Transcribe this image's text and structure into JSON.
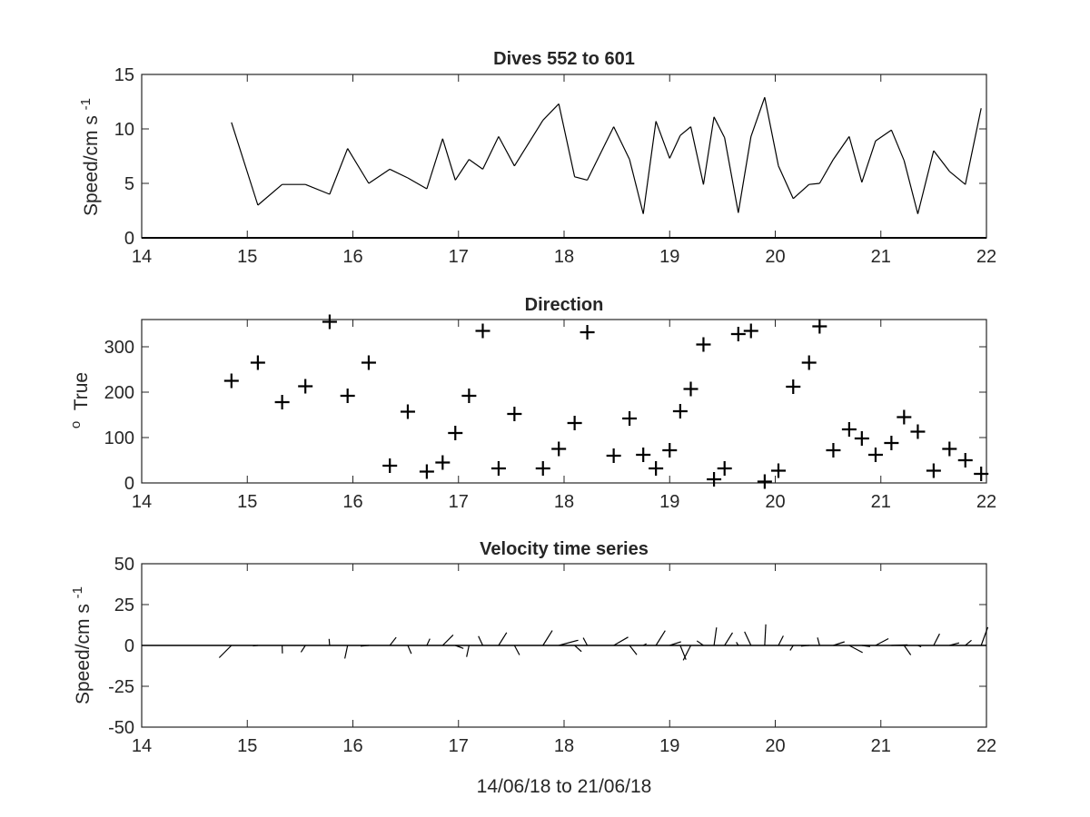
{
  "chart_data": [
    {
      "type": "line",
      "title": "Dives 552 to 601",
      "xlabel": "",
      "ylabel": "Speed/cm s",
      "ylabel_superscript": "-1",
      "xlim": [
        14,
        22
      ],
      "ylim": [
        0,
        15
      ],
      "xticks": [
        "14",
        "15",
        "16",
        "17",
        "18",
        "19",
        "20",
        "21",
        "22"
      ],
      "yticks": [
        "0",
        "5",
        "10",
        "15"
      ],
      "grid": false,
      "reference_line_y": 0,
      "x": [
        14.85,
        15.1,
        15.33,
        15.55,
        15.78,
        15.95,
        16.15,
        16.35,
        16.52,
        16.7,
        16.85,
        16.97,
        17.1,
        17.23,
        17.38,
        17.53,
        17.8,
        17.95,
        18.1,
        18.22,
        18.47,
        18.62,
        18.75,
        18.87,
        19.0,
        19.1,
        19.2,
        19.32,
        19.42,
        19.52,
        19.65,
        19.77,
        19.9,
        20.03,
        20.17,
        20.32,
        20.42,
        20.55,
        20.7,
        20.82,
        20.95,
        21.1,
        21.22,
        21.35,
        21.5,
        21.65,
        21.8,
        21.95
      ],
      "y": [
        10.6,
        3.0,
        4.9,
        4.9,
        4.0,
        8.2,
        5.0,
        6.3,
        5.5,
        4.5,
        9.1,
        5.3,
        7.2,
        6.3,
        9.3,
        6.6,
        10.8,
        12.3,
        5.6,
        5.3,
        10.2,
        7.2,
        2.2,
        10.7,
        7.3,
        9.4,
        10.2,
        4.9,
        11.1,
        9.2,
        2.3,
        9.3,
        12.9,
        6.6,
        3.6,
        4.9,
        5.0,
        7.2,
        9.3,
        5.1,
        8.9,
        9.9,
        7.1,
        2.2,
        8.0,
        6.1,
        4.9,
        11.9
      ]
    },
    {
      "type": "scatter",
      "title": "Direction",
      "xlabel": "",
      "ylabel": "True",
      "ylabel_superscript": "o",
      "xlim": [
        14,
        22
      ],
      "ylim": [
        0,
        360
      ],
      "xticks": [
        "14",
        "15",
        "16",
        "17",
        "18",
        "19",
        "20",
        "21",
        "22"
      ],
      "yticks": [
        "0",
        "100",
        "200",
        "300"
      ],
      "grid": false,
      "marker": "+",
      "x": [
        14.85,
        15.1,
        15.33,
        15.55,
        15.78,
        15.95,
        16.15,
        16.35,
        16.52,
        16.7,
        16.85,
        16.97,
        17.1,
        17.23,
        17.38,
        17.53,
        17.8,
        17.95,
        18.1,
        18.22,
        18.47,
        18.62,
        18.75,
        18.87,
        19.0,
        19.1,
        19.2,
        19.32,
        19.42,
        19.52,
        19.65,
        19.77,
        19.9,
        20.03,
        20.17,
        20.32,
        20.42,
        20.55,
        20.7,
        20.82,
        20.95,
        21.1,
        21.22,
        21.35,
        21.5,
        21.65,
        21.8,
        21.95
      ],
      "y": [
        225,
        265,
        178,
        213,
        355,
        192,
        265,
        38,
        157,
        25,
        45,
        110,
        192,
        335,
        32,
        152,
        32,
        75,
        132,
        332,
        60,
        142,
        62,
        32,
        72,
        158,
        207,
        305,
        8,
        32,
        328,
        335,
        3,
        27,
        212,
        265,
        345,
        72,
        118,
        98,
        62,
        88,
        145,
        113,
        27,
        75,
        50,
        20
      ]
    },
    {
      "type": "quiver",
      "title": "Velocity time series",
      "xlabel": "14/06/18 to 21/06/18",
      "ylabel": "Speed/cm s",
      "ylabel_superscript": "-1",
      "xlim": [
        14,
        22
      ],
      "ylim": [
        -50,
        50
      ],
      "xticks": [
        "14",
        "15",
        "16",
        "17",
        "18",
        "19",
        "20",
        "21",
        "22"
      ],
      "yticks": [
        "-50",
        "-25",
        "0",
        "25",
        "50"
      ],
      "grid": false,
      "baseline_y": 0,
      "note_vectors": "One stick per dive at the dive time, drawn from the speed (series 1) and direction in degrees True (series 2): u = speed*sin(direction), v = speed*cos(direction)."
    }
  ]
}
